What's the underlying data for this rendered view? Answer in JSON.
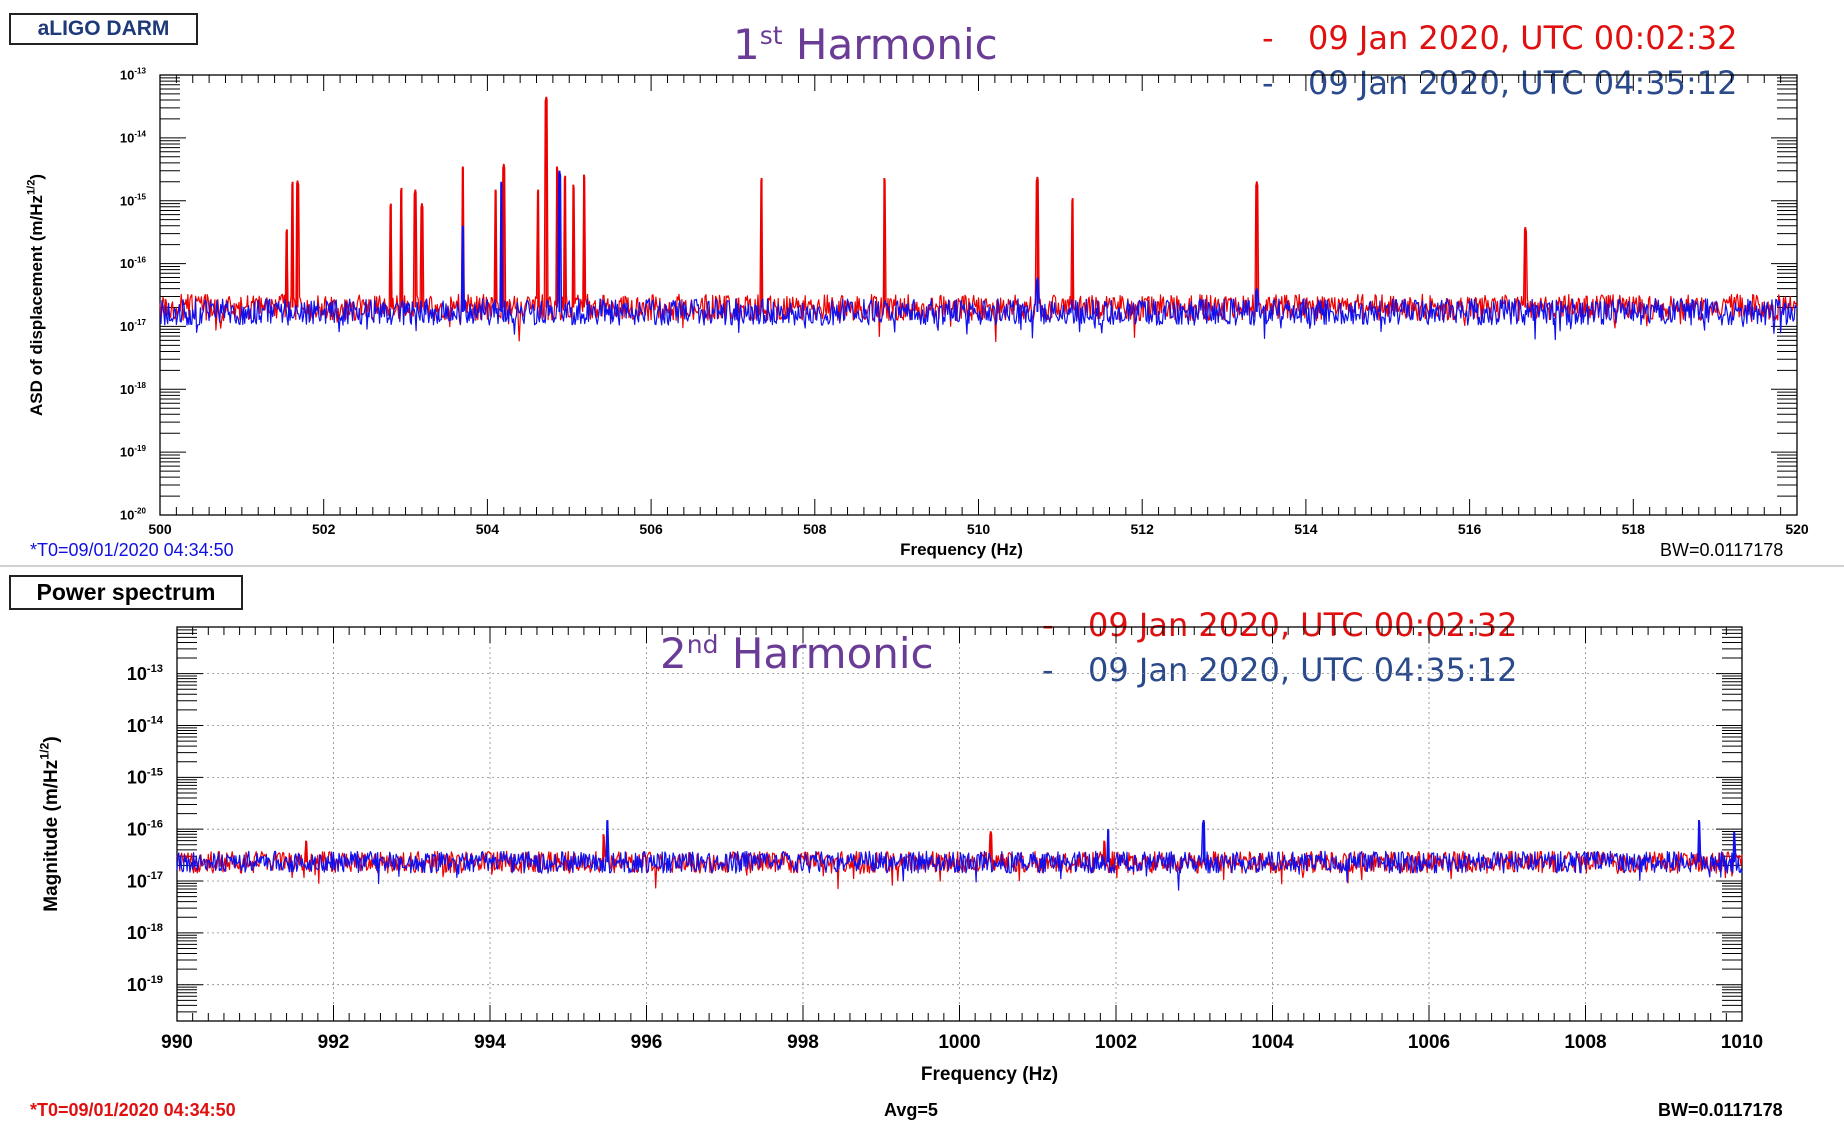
{
  "panels": [
    {
      "title": "aLIGO DARM",
      "harmonic": {
        "ordinal": "1",
        "suffix": "st",
        "word": "Harmonic"
      },
      "legend": [
        {
          "dash": "-",
          "label": "09 Jan 2020, UTC 00:02:32",
          "color": "#e01010"
        },
        {
          "dash": "-",
          "label": "09 Jan 2020, UTC 04:35:12",
          "color": "#2a4a8c"
        }
      ],
      "t0": "*T0=09/01/2020 04:34:50",
      "t0_color": "#1010e0",
      "avg": "",
      "bw": "BW=0.0117178"
    },
    {
      "title": "Power spectrum",
      "harmonic": {
        "ordinal": "2",
        "suffix": "nd",
        "word": "Harmonic"
      },
      "legend": [
        {
          "dash": "-",
          "label": "09 Jan 2020, UTC 00:02:32",
          "color": "#e01010"
        },
        {
          "dash": "-",
          "label": "09 Jan 2020, UTC 04:35:12",
          "color": "#2a4a8c"
        }
      ],
      "t0": "*T0=09/01/2020 04:34:50",
      "t0_color": "#e01010",
      "avg": "Avg=5",
      "bw": "BW=0.0117178"
    }
  ],
  "chart_data": [
    {
      "type": "line",
      "xlabel": "Frequency (Hz)",
      "ylabel": "ASD of displacement (m/Hz",
      "ylabel_sup": "1/2",
      "ylabel_end": ")",
      "y_scale": "log",
      "xlim": [
        500,
        520
      ],
      "ylim_exp": [
        -20,
        -13
      ],
      "x_ticks": [
        500,
        502,
        504,
        506,
        508,
        510,
        512,
        514,
        516,
        518,
        520
      ],
      "y_tick_exps": [
        -20,
        -19,
        -18,
        -17,
        -16,
        -15,
        -14,
        -13
      ],
      "grid": false,
      "series": [
        {
          "color": "#ee0000",
          "baseline": 2e-17,
          "peaks": [
            {
              "x": 501.55,
              "y": 3.5e-16
            },
            {
              "x": 501.62,
              "y": 2e-15
            },
            {
              "x": 501.68,
              "y": 2.1e-15
            },
            {
              "x": 502.82,
              "y": 9e-16
            },
            {
              "x": 502.95,
              "y": 1.6e-15
            },
            {
              "x": 503.12,
              "y": 1.5e-15
            },
            {
              "x": 503.2,
              "y": 9e-16
            },
            {
              "x": 503.7,
              "y": 3.5e-15
            },
            {
              "x": 504.1,
              "y": 1.5e-15
            },
            {
              "x": 504.2,
              "y": 3.8e-15
            },
            {
              "x": 504.62,
              "y": 1.5e-15
            },
            {
              "x": 504.72,
              "y": 4.5e-14
            },
            {
              "x": 504.85,
              "y": 3.5e-15
            },
            {
              "x": 504.95,
              "y": 2.5e-15
            },
            {
              "x": 505.05,
              "y": 1.8e-15
            },
            {
              "x": 505.18,
              "y": 2.6e-15
            },
            {
              "x": 507.35,
              "y": 2.3e-15
            },
            {
              "x": 508.85,
              "y": 2.3e-15
            },
            {
              "x": 510.72,
              "y": 2.4e-15
            },
            {
              "x": 511.15,
              "y": 1.1e-15
            },
            {
              "x": 513.4,
              "y": 2e-15
            },
            {
              "x": 516.68,
              "y": 3.8e-16
            }
          ]
        },
        {
          "color": "#1010ee",
          "baseline": 1.7e-17,
          "peaks": [
            {
              "x": 503.7,
              "y": 4e-16
            },
            {
              "x": 504.17,
              "y": 2e-15
            },
            {
              "x": 504.88,
              "y": 3e-15
            },
            {
              "x": 510.72,
              "y": 6e-17
            },
            {
              "x": 513.4,
              "y": 4e-17
            }
          ]
        }
      ]
    },
    {
      "type": "line",
      "xlabel": "Frequency (Hz)",
      "ylabel": "Magnitude (m/Hz",
      "ylabel_sup": "1/2",
      "ylabel_end": ")",
      "y_scale": "log",
      "xlim": [
        990,
        1010
      ],
      "ylim_exp": [
        -19.7,
        -12.1
      ],
      "x_ticks": [
        990,
        992,
        994,
        996,
        998,
        1000,
        1002,
        1004,
        1006,
        1008,
        1010
      ],
      "y_tick_exps": [
        -19,
        -18,
        -17,
        -16,
        -15,
        -14,
        -13
      ],
      "grid": true,
      "series": [
        {
          "color": "#ee0000",
          "baseline": 2.3e-17,
          "peaks": [
            {
              "x": 991.65,
              "y": 6e-17
            },
            {
              "x": 995.45,
              "y": 8e-17
            },
            {
              "x": 1000.4,
              "y": 9e-17
            },
            {
              "x": 1001.85,
              "y": 6e-17
            }
          ]
        },
        {
          "color": "#1010ee",
          "baseline": 2.3e-17,
          "peaks": [
            {
              "x": 995.5,
              "y": 1.5e-16
            },
            {
              "x": 1001.9,
              "y": 1e-16
            },
            {
              "x": 1003.12,
              "y": 1.5e-16
            },
            {
              "x": 1009.45,
              "y": 1.5e-16
            },
            {
              "x": 1009.9,
              "y": 9e-17
            }
          ]
        }
      ]
    }
  ]
}
